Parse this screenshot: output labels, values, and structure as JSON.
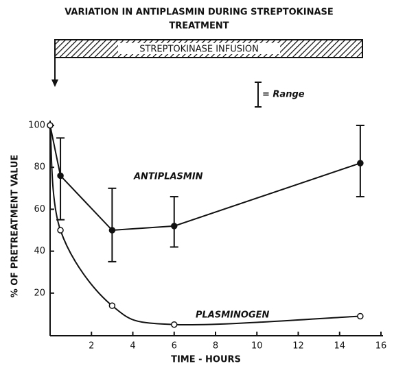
{
  "chart_data": {
    "type": "line",
    "title": [
      "VARIATION IN ANTIPLASMIN DURING STREPTOKINASE",
      "TREATMENT"
    ],
    "infusion_label": "STREPTOKINASE INFUSION",
    "range_legend": "= Range",
    "x_label": "TIME - HOURS",
    "y_label": "% OF PRETREATMENT VALUE",
    "xlim": [
      0,
      16
    ],
    "xticks": [
      2,
      4,
      6,
      8,
      10,
      12,
      14,
      16
    ],
    "ylim": [
      0,
      100
    ],
    "yticks": [
      20,
      40,
      60,
      80,
      100
    ],
    "series": [
      {
        "name": "ANTIPLASMIN",
        "color": "#111",
        "marker": "filled",
        "smooth": false,
        "x": [
          0,
          0.5,
          3,
          6,
          15
        ],
        "values": [
          100,
          76,
          50,
          52,
          82
        ],
        "ranges": [
          null,
          [
            55,
            94
          ],
          [
            35,
            70
          ],
          [
            42,
            66
          ],
          [
            66,
            100
          ]
        ]
      },
      {
        "name": "PLASMINOGEN",
        "color": "#111",
        "marker": "open",
        "smooth": true,
        "x": [
          0,
          0.5,
          3,
          6,
          15
        ],
        "values": [
          100,
          50,
          14,
          5,
          9
        ]
      }
    ]
  }
}
